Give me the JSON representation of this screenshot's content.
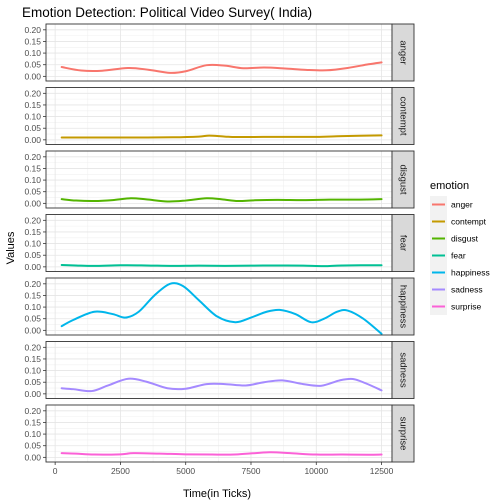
{
  "chart_data": {
    "type": "line",
    "title": "Emotion Detection: Political Video Survey( India)",
    "xlabel": "Time(in Ticks)",
    "ylabel": "Values",
    "xlim": [
      -350,
      12900
    ],
    "ylim": [
      -0.02,
      0.225
    ],
    "x_ticks": [
      0,
      2500,
      5000,
      7500,
      10000,
      12500
    ],
    "x_tick_labels": [
      "0",
      "2500",
      "5000",
      "7500",
      "10000",
      "12500"
    ],
    "y_ticks": [
      0,
      0.05,
      0.1,
      0.15,
      0.2
    ],
    "y_tick_labels": [
      "0.00",
      "0.05",
      "0.10",
      "0.15",
      "0.20"
    ],
    "legend_title": "emotion",
    "legend_position": "right",
    "grid": true,
    "facet": "rows",
    "series": [
      {
        "name": "anger",
        "color": "#F8766D",
        "points": [
          [
            250,
            0.04
          ],
          [
            1000,
            0.025
          ],
          [
            1800,
            0.024
          ],
          [
            2800,
            0.036
          ],
          [
            3600,
            0.028
          ],
          [
            4400,
            0.015
          ],
          [
            5000,
            0.022
          ],
          [
            5800,
            0.048
          ],
          [
            6500,
            0.046
          ],
          [
            7200,
            0.035
          ],
          [
            8000,
            0.038
          ],
          [
            8800,
            0.034
          ],
          [
            9600,
            0.028
          ],
          [
            10400,
            0.026
          ],
          [
            11200,
            0.036
          ],
          [
            12000,
            0.052
          ],
          [
            12500,
            0.06
          ]
        ]
      },
      {
        "name": "contempt",
        "color": "#C49A00",
        "points": [
          [
            250,
            0.01
          ],
          [
            1500,
            0.01
          ],
          [
            3000,
            0.01
          ],
          [
            4500,
            0.011
          ],
          [
            5500,
            0.014
          ],
          [
            5900,
            0.018
          ],
          [
            6500,
            0.014
          ],
          [
            7000,
            0.012
          ],
          [
            8500,
            0.013
          ],
          [
            10000,
            0.013
          ],
          [
            11000,
            0.016
          ],
          [
            12500,
            0.019
          ]
        ]
      },
      {
        "name": "disgust",
        "color": "#53B400",
        "points": [
          [
            250,
            0.018
          ],
          [
            800,
            0.012
          ],
          [
            1500,
            0.01
          ],
          [
            2200,
            0.014
          ],
          [
            2900,
            0.022
          ],
          [
            3500,
            0.017
          ],
          [
            4300,
            0.008
          ],
          [
            5000,
            0.012
          ],
          [
            5800,
            0.022
          ],
          [
            6400,
            0.017
          ],
          [
            7000,
            0.01
          ],
          [
            7600,
            0.013
          ],
          [
            8500,
            0.015
          ],
          [
            9500,
            0.014
          ],
          [
            10500,
            0.016
          ],
          [
            11500,
            0.016
          ],
          [
            12500,
            0.018
          ]
        ]
      },
      {
        "name": "fear",
        "color": "#00C094",
        "points": [
          [
            250,
            0.008
          ],
          [
            800,
            0.006
          ],
          [
            1500,
            0.004
          ],
          [
            2500,
            0.007
          ],
          [
            3500,
            0.006
          ],
          [
            4500,
            0.004
          ],
          [
            5500,
            0.005
          ],
          [
            6500,
            0.004
          ],
          [
            7500,
            0.005
          ],
          [
            8500,
            0.006
          ],
          [
            9500,
            0.005
          ],
          [
            10300,
            0.003
          ],
          [
            11000,
            0.006
          ],
          [
            12500,
            0.007
          ]
        ]
      },
      {
        "name": "happiness",
        "color": "#00B6EB",
        "points": [
          [
            250,
            0.018
          ],
          [
            700,
            0.045
          ],
          [
            1500,
            0.08
          ],
          [
            2200,
            0.07
          ],
          [
            2700,
            0.055
          ],
          [
            3200,
            0.08
          ],
          [
            3800,
            0.15
          ],
          [
            4400,
            0.2
          ],
          [
            4900,
            0.19
          ],
          [
            5500,
            0.13
          ],
          [
            6200,
            0.06
          ],
          [
            6900,
            0.035
          ],
          [
            7500,
            0.055
          ],
          [
            8100,
            0.08
          ],
          [
            8600,
            0.088
          ],
          [
            9200,
            0.07
          ],
          [
            9800,
            0.035
          ],
          [
            10300,
            0.05
          ],
          [
            10800,
            0.08
          ],
          [
            11200,
            0.085
          ],
          [
            11800,
            0.05
          ],
          [
            12500,
            -0.015
          ]
        ]
      },
      {
        "name": "sadness",
        "color": "#A58AFF",
        "points": [
          [
            250,
            0.024
          ],
          [
            700,
            0.02
          ],
          [
            1400,
            0.012
          ],
          [
            2000,
            0.035
          ],
          [
            2800,
            0.065
          ],
          [
            3500,
            0.052
          ],
          [
            4300,
            0.024
          ],
          [
            5000,
            0.022
          ],
          [
            5800,
            0.042
          ],
          [
            6500,
            0.042
          ],
          [
            7300,
            0.036
          ],
          [
            8000,
            0.05
          ],
          [
            8700,
            0.058
          ],
          [
            9500,
            0.042
          ],
          [
            10200,
            0.035
          ],
          [
            10900,
            0.058
          ],
          [
            11400,
            0.064
          ],
          [
            11900,
            0.045
          ],
          [
            12500,
            0.015
          ]
        ]
      },
      {
        "name": "surprise",
        "color": "#FB61D7",
        "points": [
          [
            250,
            0.018
          ],
          [
            800,
            0.016
          ],
          [
            1500,
            0.012
          ],
          [
            2500,
            0.013
          ],
          [
            3000,
            0.018
          ],
          [
            4000,
            0.016
          ],
          [
            5000,
            0.013
          ],
          [
            6000,
            0.012
          ],
          [
            7000,
            0.013
          ],
          [
            8200,
            0.022
          ],
          [
            9000,
            0.018
          ],
          [
            10000,
            0.012
          ],
          [
            11000,
            0.012
          ],
          [
            12000,
            0.011
          ],
          [
            12500,
            0.012
          ]
        ]
      }
    ]
  }
}
